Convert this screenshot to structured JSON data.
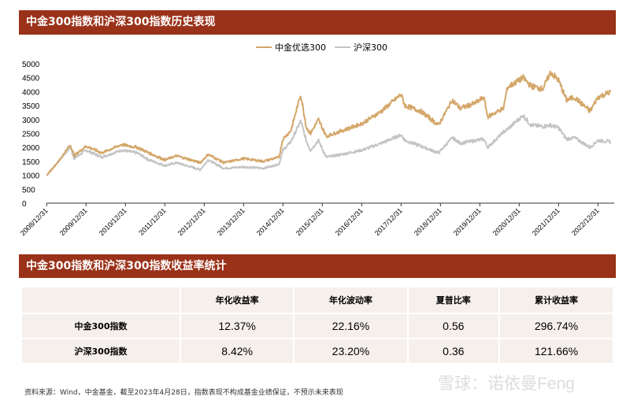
{
  "section1_title": "中金300指数和沪深300指数历史表现",
  "section2_title": "中金300指数和沪深300指数收益率统计",
  "chart_data": {
    "type": "line",
    "title": "中金300指数和沪深300指数历史表现",
    "legend": [
      "中金优选300",
      "沪深300"
    ],
    "legend_position": "top-center",
    "ylim": [
      0,
      5000
    ],
    "yticks": [
      0,
      500,
      1000,
      1500,
      2000,
      2500,
      3000,
      3500,
      4000,
      4500,
      5000
    ],
    "xticks": [
      "2008/12/31",
      "2009/12/31",
      "2010/12/31",
      "2011/12/31",
      "2012/12/31",
      "2013/12/31",
      "2014/12/31",
      "2015/12/31",
      "2016/12/31",
      "2017/12/31",
      "2018/12/31",
      "2019/12/31",
      "2020/12/31",
      "2021/12/31",
      "2022/12/31"
    ],
    "xlim": [
      2009.0,
      2023.33
    ],
    "x": [
      2009.0,
      2009.3,
      2009.6,
      2009.7,
      2010.0,
      2010.4,
      2010.9,
      2011.3,
      2011.6,
      2012.0,
      2012.3,
      2012.9,
      2013.1,
      2013.5,
      2014.0,
      2014.5,
      2014.9,
      2015.0,
      2015.2,
      2015.45,
      2015.6,
      2015.7,
      2015.9,
      2016.1,
      2016.5,
      2017.0,
      2017.5,
      2018.0,
      2018.1,
      2018.5,
      2018.95,
      2019.3,
      2019.5,
      2019.9,
      2020.1,
      2020.2,
      2020.6,
      2020.7,
      2021.1,
      2021.3,
      2021.6,
      2021.8,
      2022.0,
      2022.2,
      2022.4,
      2022.8,
      2023.0,
      2023.33
    ],
    "series": [
      {
        "name": "中金优选300",
        "color": "#d4a76a",
        "values": [
          1000,
          1500,
          2100,
          1700,
          2050,
          1800,
          2100,
          2000,
          1800,
          1550,
          1700,
          1450,
          1750,
          1450,
          1600,
          1500,
          1650,
          2300,
          2600,
          3900,
          2700,
          2500,
          3000,
          2400,
          2600,
          2850,
          3300,
          3900,
          3500,
          3300,
          2800,
          3700,
          3400,
          3600,
          3800,
          3100,
          3400,
          4150,
          4500,
          4200,
          4100,
          4700,
          4400,
          3700,
          3800,
          3300,
          3800,
          4000
        ]
      },
      {
        "name": "沪深300",
        "color": "#c4c4c6",
        "values": [
          1000,
          1500,
          2000,
          1600,
          1900,
          1650,
          1900,
          1800,
          1550,
          1350,
          1450,
          1200,
          1550,
          1250,
          1300,
          1250,
          1400,
          1900,
          2200,
          2950,
          2200,
          1900,
          2250,
          1650,
          1750,
          1900,
          2150,
          2450,
          2250,
          2050,
          1800,
          2350,
          2150,
          2250,
          2300,
          2000,
          2550,
          2650,
          3150,
          2800,
          2750,
          2800,
          2700,
          2300,
          2350,
          2000,
          2250,
          2200
        ]
      }
    ]
  },
  "table": {
    "headers": [
      "",
      "年化收益率",
      "年化波动率",
      "夏普比率",
      "累计收益率"
    ],
    "rows": [
      [
        "中金300指数",
        "12.37%",
        "22.16%",
        "0.56",
        "296.74%"
      ],
      [
        "沪深300指数",
        "8.42%",
        "23.20%",
        "0.36",
        "121.66%"
      ]
    ]
  },
  "footnote": "资料来源：Wind，中金基金，截至2023年4月28日，指数表现不构成基金业绩保证，不预示未来表现",
  "watermark": "雪球：诺依曼Feng"
}
